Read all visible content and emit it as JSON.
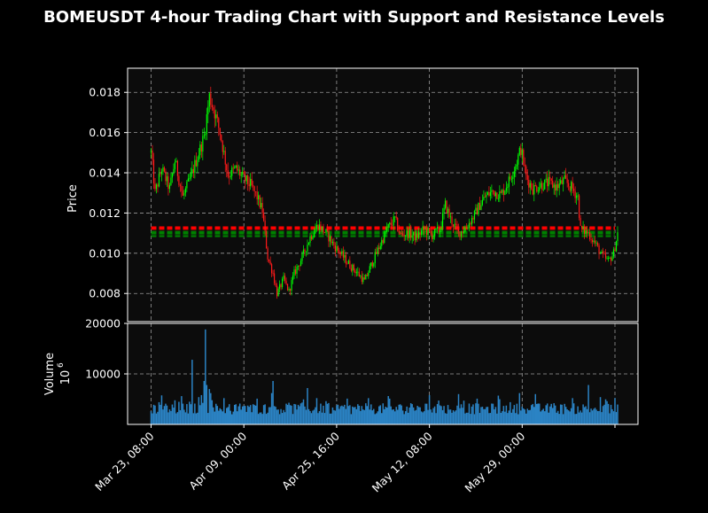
{
  "chart_data": {
    "type": "candlestick",
    "title": "BOMEUSDT 4-hour Trading Chart with Support and Resistance Levels",
    "colors": {
      "background": "#000000",
      "plot_background": "#0c0c0c",
      "up": "#00ff00",
      "down": "#ff1a1a",
      "volume": "#2b83c4",
      "grid": "#9a9a9a",
      "resistance": "#ff0000",
      "support": "#008000"
    },
    "price_panel": {
      "ylabel": "Price",
      "ylim": [
        0.0066,
        0.0192
      ],
      "yticks": [
        0.008,
        0.01,
        0.012,
        0.014,
        0.016,
        0.018
      ],
      "ytick_labels": [
        "0.008",
        "0.010",
        "0.012",
        "0.014",
        "0.016",
        "0.018"
      ],
      "grid": true,
      "anchors": [
        [
          0,
          0.015
        ],
        [
          3,
          0.013
        ],
        [
          8,
          0.0142
        ],
        [
          14,
          0.0132
        ],
        [
          18,
          0.0146
        ],
        [
          24,
          0.0128
        ],
        [
          30,
          0.0138
        ],
        [
          35,
          0.0148
        ],
        [
          40,
          0.0158
        ],
        [
          44,
          0.0178
        ],
        [
          48,
          0.017
        ],
        [
          52,
          0.016
        ],
        [
          58,
          0.0139
        ],
        [
          64,
          0.0142
        ],
        [
          70,
          0.0137
        ],
        [
          75,
          0.0134
        ],
        [
          80,
          0.0128
        ],
        [
          84,
          0.0121
        ],
        [
          88,
          0.0098
        ],
        [
          92,
          0.009
        ],
        [
          95,
          0.008
        ],
        [
          100,
          0.0087
        ],
        [
          104,
          0.0081
        ],
        [
          108,
          0.009
        ],
        [
          114,
          0.0098
        ],
        [
          120,
          0.0108
        ],
        [
          126,
          0.0114
        ],
        [
          132,
          0.011
        ],
        [
          138,
          0.0104
        ],
        [
          144,
          0.0099
        ],
        [
          150,
          0.0094
        ],
        [
          156,
          0.009
        ],
        [
          161,
          0.0086
        ],
        [
          166,
          0.0094
        ],
        [
          172,
          0.0103
        ],
        [
          178,
          0.0112
        ],
        [
          184,
          0.0117
        ],
        [
          188,
          0.0109
        ],
        [
          194,
          0.011
        ],
        [
          200,
          0.0108
        ],
        [
          206,
          0.0112
        ],
        [
          212,
          0.0109
        ],
        [
          218,
          0.0112
        ],
        [
          222,
          0.0124
        ],
        [
          226,
          0.0117
        ],
        [
          232,
          0.011
        ],
        [
          238,
          0.0113
        ],
        [
          244,
          0.0119
        ],
        [
          248,
          0.0124
        ],
        [
          252,
          0.0128
        ],
        [
          258,
          0.0131
        ],
        [
          264,
          0.0129
        ],
        [
          270,
          0.0136
        ],
        [
          275,
          0.0144
        ],
        [
          279,
          0.0152
        ],
        [
          283,
          0.0138
        ],
        [
          288,
          0.0132
        ],
        [
          294,
          0.0134
        ],
        [
          300,
          0.0135
        ],
        [
          306,
          0.0133
        ],
        [
          312,
          0.0136
        ],
        [
          318,
          0.0132
        ],
        [
          322,
          0.0128
        ],
        [
          324,
          0.0112
        ],
        [
          330,
          0.011
        ],
        [
          335,
          0.0105
        ],
        [
          340,
          0.0099
        ],
        [
          345,
          0.0096
        ],
        [
          349,
          0.01
        ],
        [
          352,
          0.011
        ]
      ],
      "candle_count": 353,
      "resistance_levels": [
        0.01128,
        0.01122
      ],
      "support_levels": [
        0.01106,
        0.01098,
        0.01085
      ]
    },
    "volume_panel": {
      "ylabel": "Volume",
      "scale_label": "10",
      "scale_exponent": "6",
      "ylim": [
        0,
        20000
      ],
      "yticks": [
        10000,
        20000
      ],
      "ytick_labels": [
        "10000",
        "20000"
      ],
      "baseline": 2000,
      "spikes": [
        [
          6,
          4400
        ],
        [
          23,
          5600
        ],
        [
          31,
          12800
        ],
        [
          36,
          5400
        ],
        [
          38,
          5800
        ],
        [
          40,
          8600
        ],
        [
          41,
          18800
        ],
        [
          42,
          7800
        ],
        [
          44,
          7000
        ],
        [
          45,
          6200
        ],
        [
          55,
          5200
        ],
        [
          64,
          4000
        ],
        [
          80,
          5100
        ],
        [
          91,
          6200
        ],
        [
          92,
          8600
        ],
        [
          102,
          4100
        ],
        [
          118,
          7200
        ],
        [
          125,
          5200
        ],
        [
          132,
          4600
        ],
        [
          150,
          3800
        ],
        [
          164,
          5200
        ],
        [
          180,
          5100
        ],
        [
          196,
          4200
        ],
        [
          210,
          5800
        ],
        [
          232,
          6000
        ],
        [
          246,
          5100
        ],
        [
          262,
          5700
        ],
        [
          278,
          6200
        ],
        [
          290,
          6000
        ],
        [
          304,
          4200
        ],
        [
          318,
          5200
        ],
        [
          330,
          7800
        ],
        [
          344,
          4600
        ],
        [
          350,
          5200
        ]
      ]
    },
    "x_axis": {
      "ticks": [
        {
          "index": 0,
          "label": "Mar 23, 08:00"
        },
        {
          "index": 70,
          "label": "Apr 09, 00:00"
        },
        {
          "index": 140,
          "label": "Apr 25, 16:00"
        },
        {
          "index": 210,
          "label": "May 12, 08:00"
        },
        {
          "index": 280,
          "label": "May 29, 00:00"
        },
        {
          "index": 350,
          "label": ""
        }
      ]
    }
  }
}
